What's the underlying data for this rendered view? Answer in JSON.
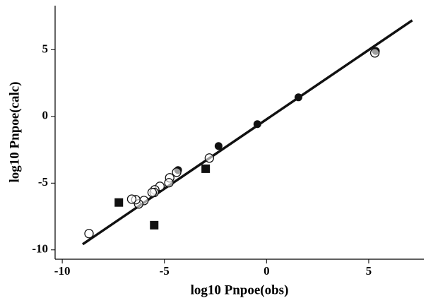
{
  "chart_data": {
    "type": "scatter",
    "xlabel": "log10 Pnpoe(obs)",
    "ylabel": "log10 Pnpoe(calc)",
    "xlim": [
      -10.35,
      7.7
    ],
    "ylim": [
      -10.7,
      8.3
    ],
    "xticks": [
      -10,
      -5,
      0,
      5
    ],
    "yticks": [
      -10,
      -5,
      0,
      5
    ],
    "series": [
      {
        "marker": "line",
        "color": "#111111",
        "x": [
          -9.0,
          7.13
        ],
        "y": [
          -9.58,
          7.2
        ]
      },
      {
        "marker": "circle-filled",
        "color": "#111111",
        "x": [
          5.35,
          1.56,
          -0.45,
          -2.35,
          -4.33
        ],
        "y": [
          4.9,
          1.43,
          -0.58,
          -2.22,
          -4.02
        ]
      },
      {
        "marker": "circle-open",
        "color": "#111111",
        "x": [
          5.3,
          -2.8,
          -4.4,
          -4.74,
          -4.78,
          -5.22,
          -5.47,
          -5.5,
          -5.6,
          -6.0,
          -6.26,
          -6.4,
          -6.6,
          -8.69
        ],
        "y": [
          4.76,
          -3.12,
          -4.18,
          -4.6,
          -4.97,
          -5.24,
          -5.5,
          -5.7,
          -5.7,
          -6.3,
          -6.56,
          -6.24,
          -6.2,
          -8.78
        ]
      },
      {
        "marker": "square",
        "color": "#111111",
        "x": [
          -7.23,
          -5.5,
          -2.98
        ],
        "y": [
          -6.45,
          -8.15,
          -3.92
        ]
      }
    ]
  }
}
